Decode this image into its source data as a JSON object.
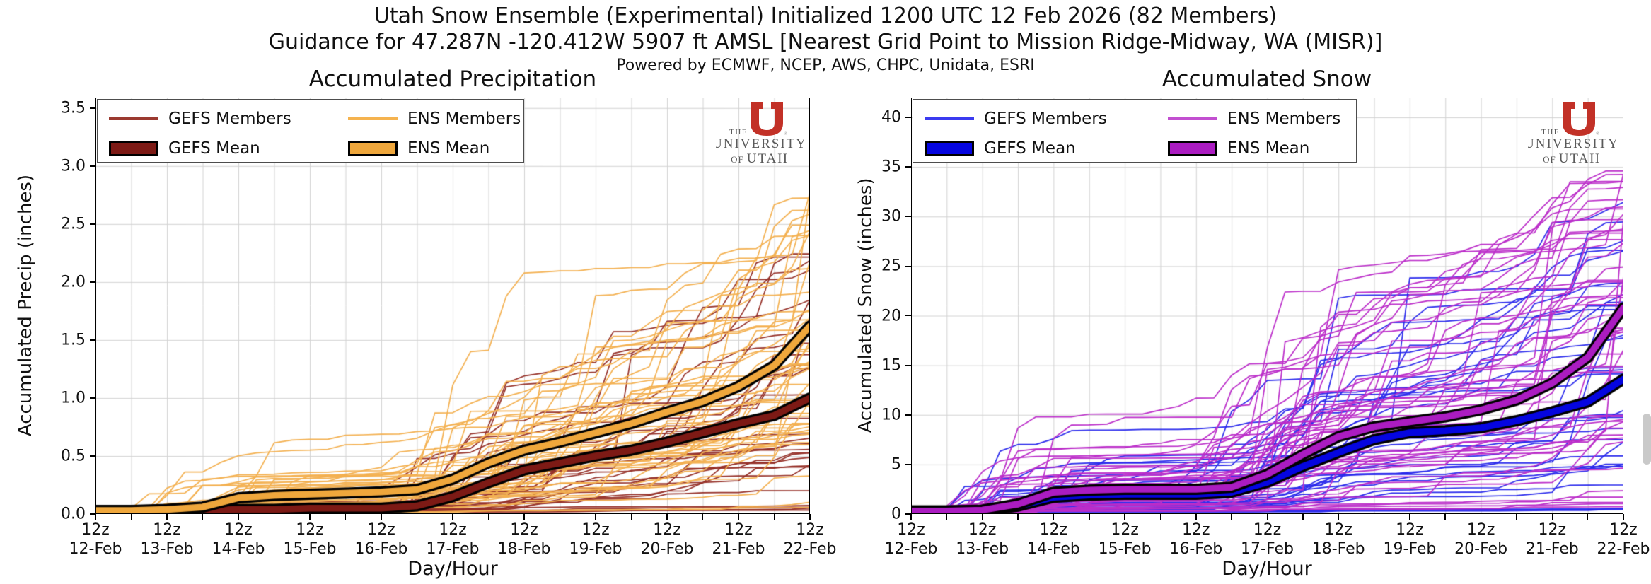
{
  "header": {
    "title_line1": "Utah Snow Ensemble (Experimental) Initialized 1200 UTC 12 Feb 2026 (82 Members)",
    "title_line2": "Guidance for 47.287N -120.412W 5907 ft AMSL [Nearest Grid Point to Mission Ridge-Midway, WA (MISR)]",
    "powered_by": "Powered by ECMWF, NCEP, AWS, CHPC, Unidata, ESRI"
  },
  "logo": {
    "the": "THE",
    "university": "UNIVERSITY",
    "of": "OF",
    "utah": "UTAH",
    "u_color": "#c23127",
    "text_color": "#5a5a5a"
  },
  "chart_data": [
    {
      "type": "line",
      "title": "Accumulated Precipitation",
      "xlabel": "Day/Hour",
      "ylabel": "Accumulated Precip (inches)",
      "x_hour_label": "12z",
      "x_dates": [
        "12-Feb",
        "13-Feb",
        "14-Feb",
        "15-Feb",
        "16-Feb",
        "17-Feb",
        "18-Feb",
        "19-Feb",
        "20-Feb",
        "21-Feb",
        "22-Feb"
      ],
      "ytick_labels": [
        "0.0",
        "0.5",
        "1.0",
        "1.5",
        "2.0",
        "2.5",
        "3.0",
        "3.5"
      ],
      "ytick_values": [
        0,
        0.5,
        1,
        1.5,
        2,
        2.5,
        3,
        3.5
      ],
      "ylim": [
        0,
        3.59
      ],
      "x_range_days": [
        0,
        10
      ],
      "grid": {
        "x_interval_days": 0.5,
        "y_major_only": true,
        "color": "#d2d2d2"
      },
      "legend": {
        "position": "upper left",
        "entries": [
          {
            "label": "GEFS Members",
            "swatch": "line",
            "color": "#9b3a30"
          },
          {
            "label": "ENS Members",
            "swatch": "line",
            "color": "#f5b34f"
          },
          {
            "label": "GEFS Mean",
            "swatch": "patch",
            "color": "#7d1a15"
          },
          {
            "label": "ENS Mean",
            "swatch": "patch",
            "color": "#efa73c"
          }
        ]
      },
      "x_series_days": [
        0,
        0.5,
        1,
        1.5,
        2,
        2.5,
        3,
        3.5,
        4,
        4.5,
        5,
        5.5,
        6,
        6.5,
        7,
        7.5,
        8,
        8.5,
        9,
        9.5,
        10
      ],
      "series": [
        {
          "name": "GEFS Mean",
          "color": "#7d1a15",
          "outline": "#000000",
          "values": [
            0.03,
            0.03,
            0.03,
            0.03,
            0.04,
            0.04,
            0.05,
            0.05,
            0.05,
            0.07,
            0.15,
            0.27,
            0.38,
            0.44,
            0.5,
            0.55,
            0.62,
            0.7,
            0.78,
            0.85,
            1.0
          ]
        },
        {
          "name": "ENS Mean",
          "color": "#efa73c",
          "outline": "#000000",
          "values": [
            0.03,
            0.03,
            0.04,
            0.06,
            0.14,
            0.16,
            0.17,
            0.18,
            0.19,
            0.21,
            0.3,
            0.44,
            0.55,
            0.62,
            0.7,
            0.78,
            0.88,
            0.97,
            1.1,
            1.28,
            1.62
          ]
        }
      ],
      "members": [
        {
          "name": "GEFS Members",
          "count": 31,
          "color": "#963129",
          "final_range": [
            0.0,
            2.75
          ],
          "follows_mean": "GEFS Mean"
        },
        {
          "name": "ENS Members",
          "count": 51,
          "color": "#f3b050",
          "final_range": [
            0.0,
            2.9
          ],
          "follows_mean": "ENS Mean"
        }
      ],
      "member_seed": 1234567
    },
    {
      "type": "line",
      "title": "Accumulated Snow",
      "xlabel": "Day/Hour",
      "ylabel": "Accumulated Snow (inches)",
      "x_hour_label": "12z",
      "x_dates": [
        "12-Feb",
        "13-Feb",
        "14-Feb",
        "15-Feb",
        "16-Feb",
        "17-Feb",
        "18-Feb",
        "19-Feb",
        "20-Feb",
        "21-Feb",
        "22-Feb"
      ],
      "ytick_labels": [
        "0",
        "5",
        "10",
        "15",
        "20",
        "25",
        "30",
        "35",
        "40"
      ],
      "ytick_values": [
        0,
        5,
        10,
        15,
        20,
        25,
        30,
        35,
        40
      ],
      "ylim": [
        0,
        42
      ],
      "x_range_days": [
        0,
        10
      ],
      "grid": {
        "x_interval_days": 0.5,
        "y_major_only": true,
        "color": "#d2d2d2"
      },
      "legend": {
        "position": "upper left",
        "entries": [
          {
            "label": "GEFS Members",
            "swatch": "line",
            "color": "#3b3bf0"
          },
          {
            "label": "ENS Members",
            "swatch": "line",
            "color": "#c24fd0"
          },
          {
            "label": "GEFS Mean",
            "swatch": "patch",
            "color": "#0505e0"
          },
          {
            "label": "ENS Mean",
            "swatch": "patch",
            "color": "#ab1cc1"
          }
        ]
      },
      "x_series_days": [
        0,
        0.5,
        1,
        1.5,
        2,
        2.5,
        3,
        3.5,
        4,
        4.5,
        5,
        5.5,
        6,
        6.5,
        7,
        7.5,
        8,
        8.5,
        9,
        9.5,
        10
      ],
      "series": [
        {
          "name": "GEFS Mean",
          "color": "#0505e0",
          "outline": "#000000",
          "values": [
            0.3,
            0.3,
            0.35,
            0.8,
            1.7,
            1.9,
            2.0,
            2.0,
            2.0,
            2.2,
            3.2,
            4.8,
            6.2,
            7.5,
            8.2,
            8.4,
            8.7,
            9.4,
            10.3,
            11.3,
            13.6
          ]
        },
        {
          "name": "ENS Mean",
          "color": "#ab1cc1",
          "outline": "#000000",
          "values": [
            0.3,
            0.3,
            0.4,
            1.0,
            2.2,
            2.4,
            2.5,
            2.5,
            2.5,
            2.7,
            4.0,
            6.0,
            7.8,
            8.8,
            9.3,
            9.8,
            10.5,
            11.5,
            13.2,
            15.8,
            20.8
          ]
        }
      ],
      "members": [
        {
          "name": "GEFS Members",
          "count": 31,
          "color": "#2b2bec",
          "final_range": [
            0.0,
            33.0
          ],
          "follows_mean": "GEFS Mean"
        },
        {
          "name": "ENS Members",
          "count": 51,
          "color": "#bb2dc9",
          "final_range": [
            0.0,
            35.0
          ],
          "follows_mean": "ENS Mean"
        }
      ],
      "member_seed": 987654
    }
  ]
}
